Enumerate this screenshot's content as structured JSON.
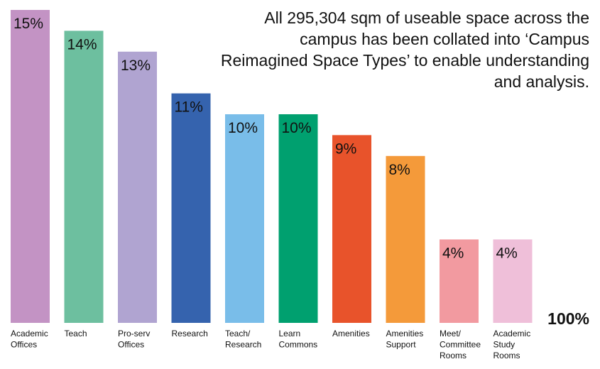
{
  "chart_data": {
    "type": "bar",
    "annotation": "All 295,304 sqm of useable space across the campus has been collated into ‘Campus Reimagined Space Types’ to enable understanding and analysis.",
    "total_label": "100%",
    "categories": [
      "Academic Offices",
      "Teach",
      "Pro-serv Offices",
      "Research",
      "Teach/ Research",
      "Learn Commons",
      "Amenities",
      "Amenities Support",
      "Meet/ Committee Rooms",
      "Academic Study Rooms"
    ],
    "values": [
      15,
      14,
      13,
      11,
      10,
      10,
      9,
      8,
      4,
      4
    ],
    "value_labels": [
      "15%",
      "14%",
      "13%",
      "11%",
      "10%",
      "10%",
      "9%",
      "8%",
      "4%",
      "4%"
    ],
    "colors": [
      "#c393c4",
      "#6dbf9f",
      "#b0a4d1",
      "#3563ae",
      "#79bde9",
      "#00a06f",
      "#e8532b",
      "#f49a3a",
      "#f29aa0",
      "#efbfd9"
    ],
    "ylim": [
      0,
      15
    ]
  }
}
